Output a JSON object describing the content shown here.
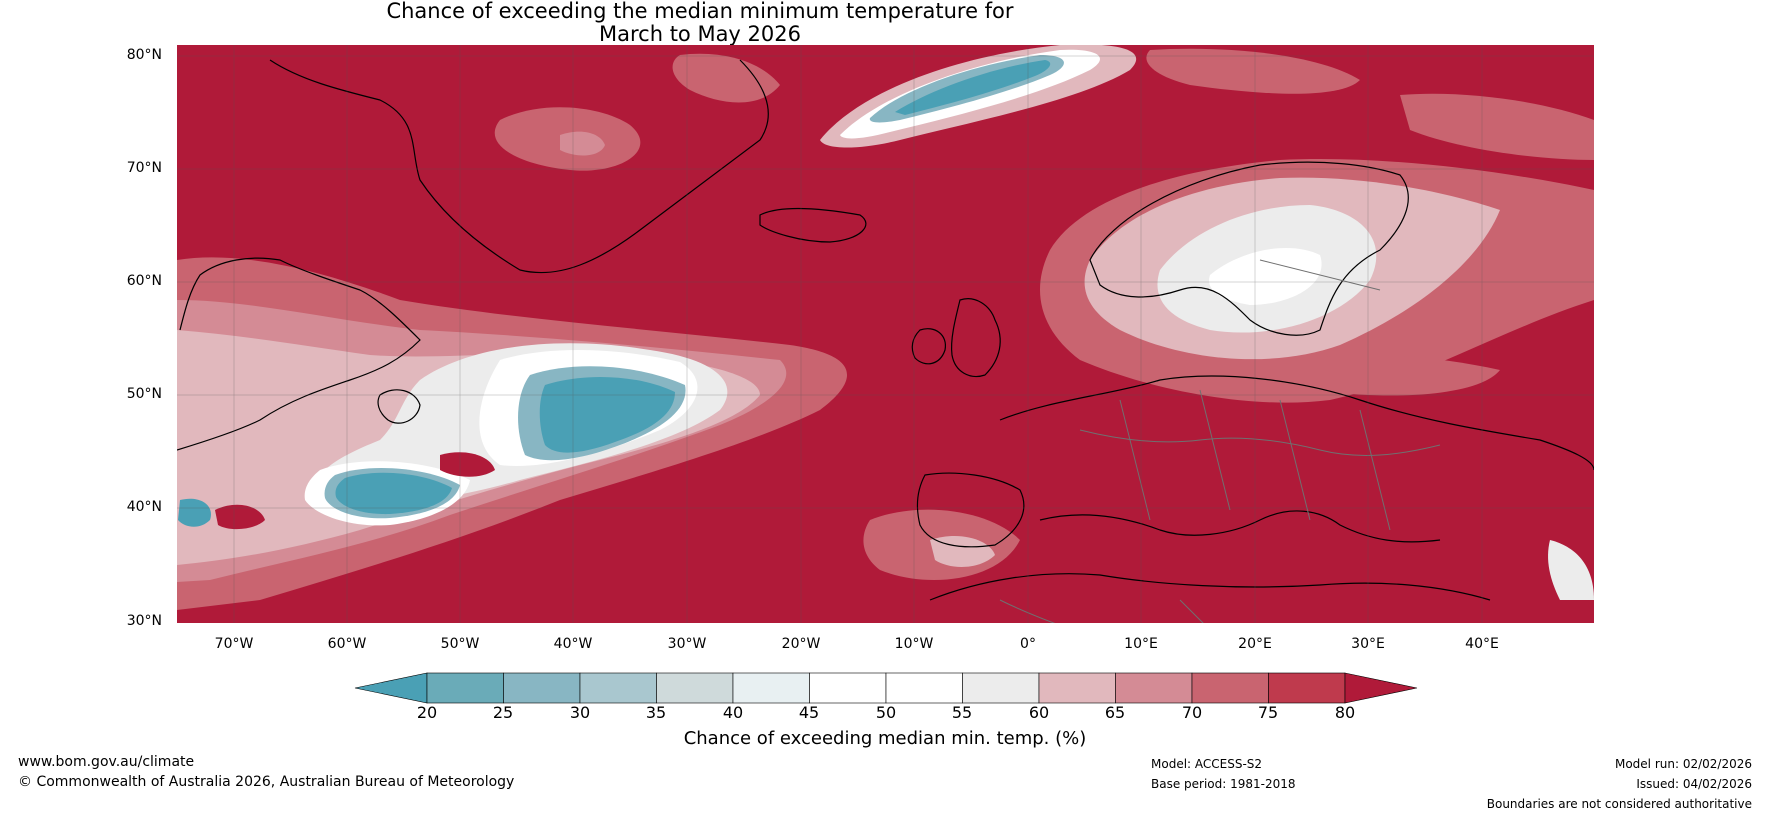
{
  "title": {
    "line1": "Chance of exceeding the median minimum temperature for",
    "line2": "March to May 2026"
  },
  "latitude_labels": [
    "80°N",
    "70°N",
    "60°N",
    "50°N",
    "40°N",
    "30°N"
  ],
  "longitude_labels": [
    "70°W",
    "60°W",
    "50°W",
    "40°W",
    "30°W",
    "20°W",
    "10°W",
    "0°",
    "10°E",
    "20°E",
    "30°E",
    "40°E"
  ],
  "colorbar": {
    "ticks": [
      "20",
      "25",
      "30",
      "35",
      "40",
      "45",
      "50",
      "55",
      "60",
      "65",
      "70",
      "75",
      "80"
    ],
    "label": "Chance of exceeding median min. temp. (%)",
    "colors": [
      "#4aa0b5",
      "#6aabb8",
      "#88b6c3",
      "#a9c7cf",
      "#cfdadb",
      "#e8f0f2",
      "#ffffff",
      "#ffffff",
      "#ececec",
      "#e1b8bd",
      "#d48b95",
      "#c96470",
      "#bf3a4d",
      "#b01a39"
    ]
  },
  "map_colors": {
    "dominant": "#b01a39",
    "warm_mid": "#c96470",
    "warm_light": "#e1b8bd",
    "neutral": "#ececec",
    "cool_mid": "#88b6c3",
    "cool_dark": "#4aa0b5"
  },
  "footer": {
    "website": "www.bom.gov.au/climate",
    "copyright": "© Commonwealth of Australia 2026, Australian Bureau of Meteorology",
    "model": "Model: ACCESS-S2",
    "base_period": "Base period: 1981-2018",
    "model_run": "Model run: 02/02/2026",
    "issued": "Issued: 04/02/2026",
    "disclaimer": "Boundaries are not considered authoritative"
  }
}
